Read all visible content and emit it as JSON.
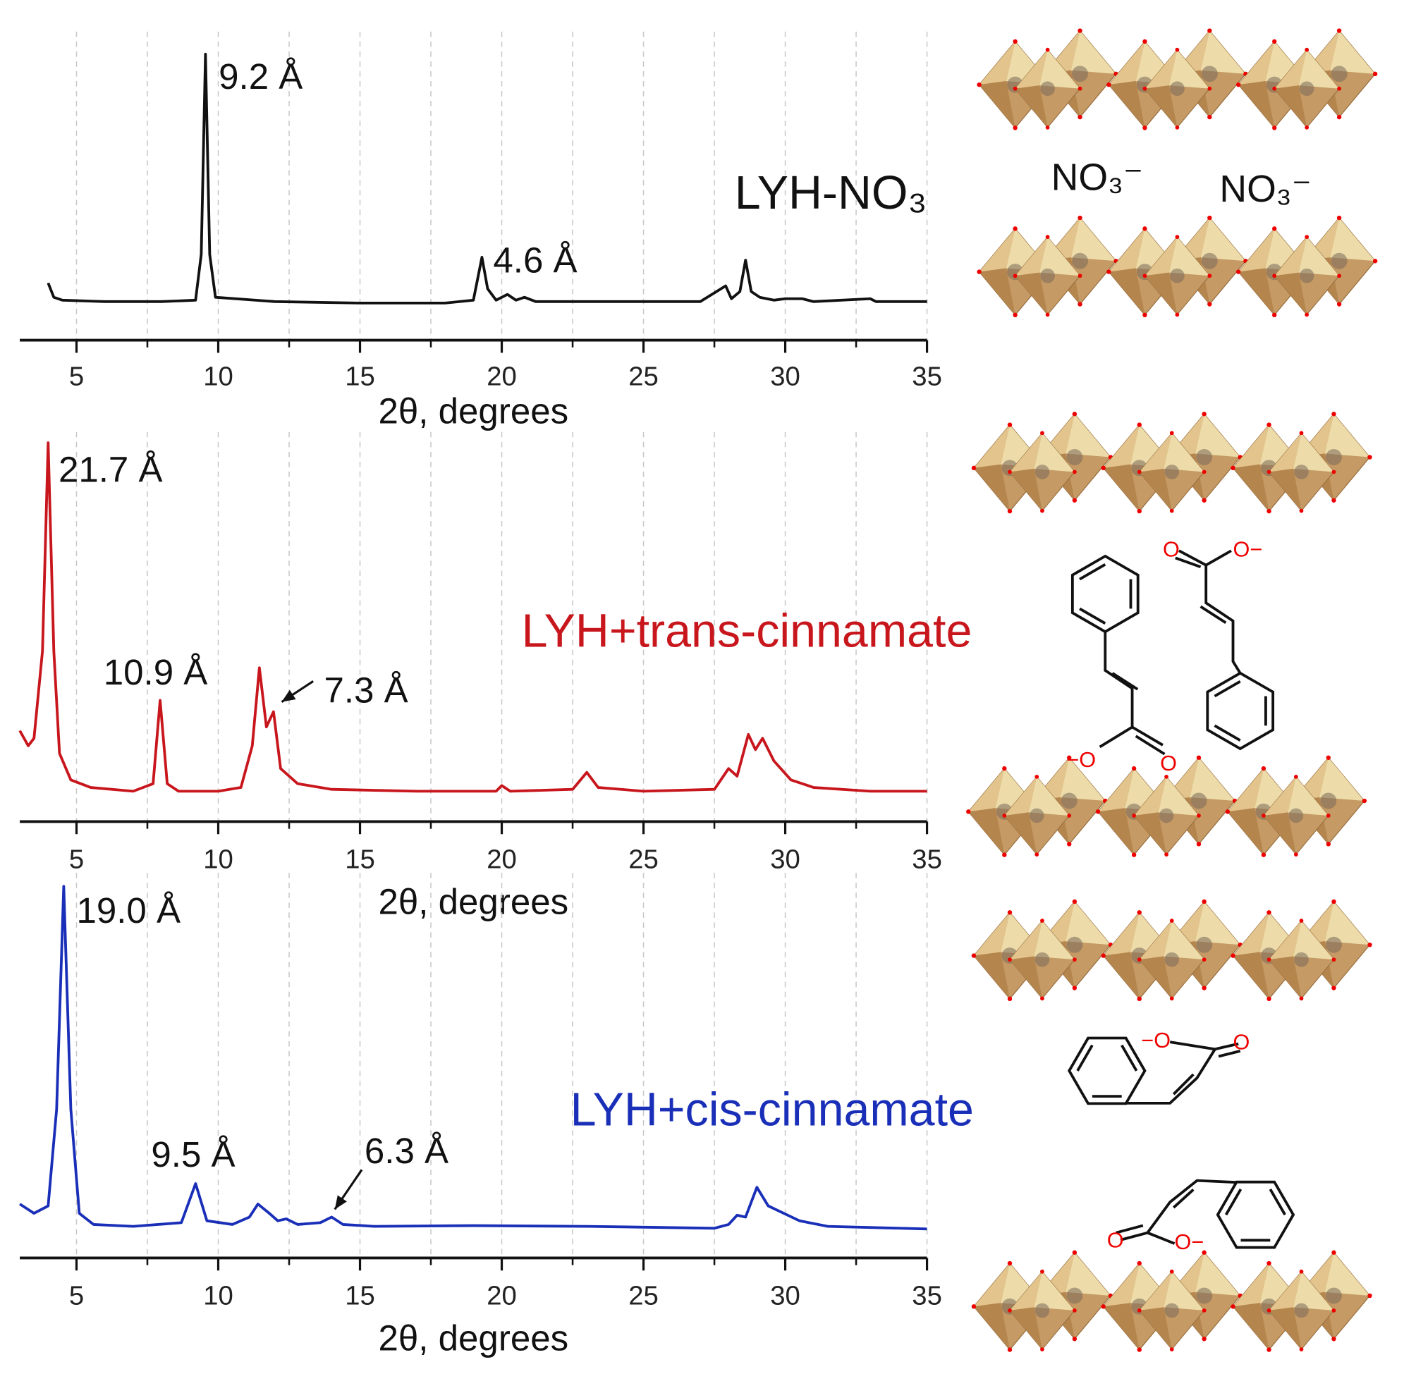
{
  "chart_data": [
    {
      "type": "line",
      "title": "LYH-NO₃",
      "xlabel": "2θ, degrees",
      "color": "#111111",
      "x": [
        4,
        4.2,
        4.5,
        6,
        8,
        9.2,
        9.4,
        9.55,
        9.7,
        9.9,
        12,
        15,
        18,
        19,
        19.3,
        19.5,
        19.8,
        20.2,
        20.5,
        20.8,
        21.2,
        24,
        27,
        27.9,
        28.1,
        28.4,
        28.6,
        28.8,
        29.1,
        29.6,
        30,
        30.6,
        31,
        33,
        33.2,
        35
      ],
      "values": [
        20,
        15,
        14,
        13.5,
        13.5,
        14,
        30,
        100,
        30,
        15,
        13.5,
        13,
        13,
        14,
        29,
        18,
        14,
        16,
        14,
        15,
        13.5,
        13.5,
        13.5,
        19,
        14.5,
        17,
        28,
        17,
        15,
        14,
        14.5,
        14.5,
        13.5,
        14.5,
        13.5,
        13.5
      ],
      "xlim": [
        3,
        35
      ],
      "ylim": [
        0,
        100
      ],
      "xticks": [
        5,
        10,
        15,
        20,
        25,
        30,
        35
      ],
      "xminorticks": [
        7.5,
        12.5,
        17.5,
        22.5,
        27.5,
        32.5
      ],
      "grid": true,
      "annotations": [
        "9.2 Å",
        "4.6 Å"
      ]
    },
    {
      "type": "line",
      "title": "LYH+trans-cinnamate",
      "xlabel": "2θ, degrees",
      "color": "#c8161d",
      "x": [
        3,
        3.3,
        3.5,
        3.8,
        4.0,
        4.2,
        4.4,
        4.8,
        5.5,
        7,
        7.7,
        7.95,
        8.2,
        8.6,
        10,
        10.8,
        11.2,
        11.45,
        11.7,
        11.95,
        12.2,
        12.8,
        14,
        17,
        19.8,
        20,
        20.3,
        22.5,
        23,
        23.4,
        25,
        27.5,
        28,
        28.3,
        28.7,
        28.95,
        29.2,
        29.6,
        30.2,
        31,
        33,
        35
      ],
      "values": [
        24,
        20,
        22,
        45,
        100,
        45,
        18,
        11,
        9,
        8,
        10,
        32,
        10,
        8,
        8,
        9,
        20,
        40.6,
        25,
        29,
        14,
        10,
        8.5,
        8,
        8,
        9.5,
        8,
        8.5,
        13,
        9,
        8,
        8.5,
        14,
        12,
        23,
        19,
        22,
        16,
        11,
        9,
        8,
        8
      ],
      "xlim": [
        3,
        35
      ],
      "ylim": [
        0,
        100
      ],
      "xticks": [
        5,
        10,
        15,
        20,
        25,
        30,
        35
      ],
      "xminorticks": [
        7.5,
        12.5,
        17.5,
        22.5,
        27.5,
        32.5
      ],
      "grid": true,
      "annotations": [
        "21.7 Å",
        "10.9 Å",
        "7.3 Å"
      ]
    },
    {
      "type": "line",
      "title": "LYH+cis-cinnamate",
      "xlabel": "2θ, degrees",
      "color": "#1a2fb8",
      "x": [
        3,
        3.5,
        4.0,
        4.3,
        4.55,
        4.8,
        5.1,
        5.6,
        7,
        8.7,
        9.2,
        9.6,
        10.5,
        11.1,
        11.4,
        11.8,
        12.1,
        12.4,
        12.8,
        13.6,
        14,
        14.4,
        15.5,
        19,
        23,
        27.5,
        28,
        28.3,
        28.6,
        29.0,
        29.4,
        30.5,
        31.5,
        35
      ],
      "values": [
        14.5,
        12,
        14,
        40,
        100,
        40,
        12,
        9,
        8.5,
        9.5,
        20,
        10,
        9,
        11,
        14.5,
        12,
        10,
        10.5,
        9,
        9.5,
        11,
        9,
        8.5,
        8.7,
        8.5,
        8,
        9,
        11.5,
        11,
        19,
        14,
        10,
        8.5,
        7.8
      ],
      "xlim": [
        3,
        35
      ],
      "ylim": [
        0,
        100
      ],
      "xticks": [
        5,
        10,
        15,
        20,
        25,
        30,
        35
      ],
      "xminorticks": [
        7.5,
        12.5,
        17.5,
        22.5,
        27.5,
        32.5
      ],
      "grid": true,
      "annotations": [
        "19.0 Å",
        "9.5 Å",
        "6.3 Å"
      ]
    }
  ],
  "illustration": {
    "nitrate_labels": [
      "NO₃⁻",
      "NO₃⁻"
    ],
    "trans_labels": [
      "−O",
      "O",
      "O",
      "O−"
    ],
    "cis_labels": [
      "−O",
      "O",
      "O",
      "O−"
    ]
  }
}
